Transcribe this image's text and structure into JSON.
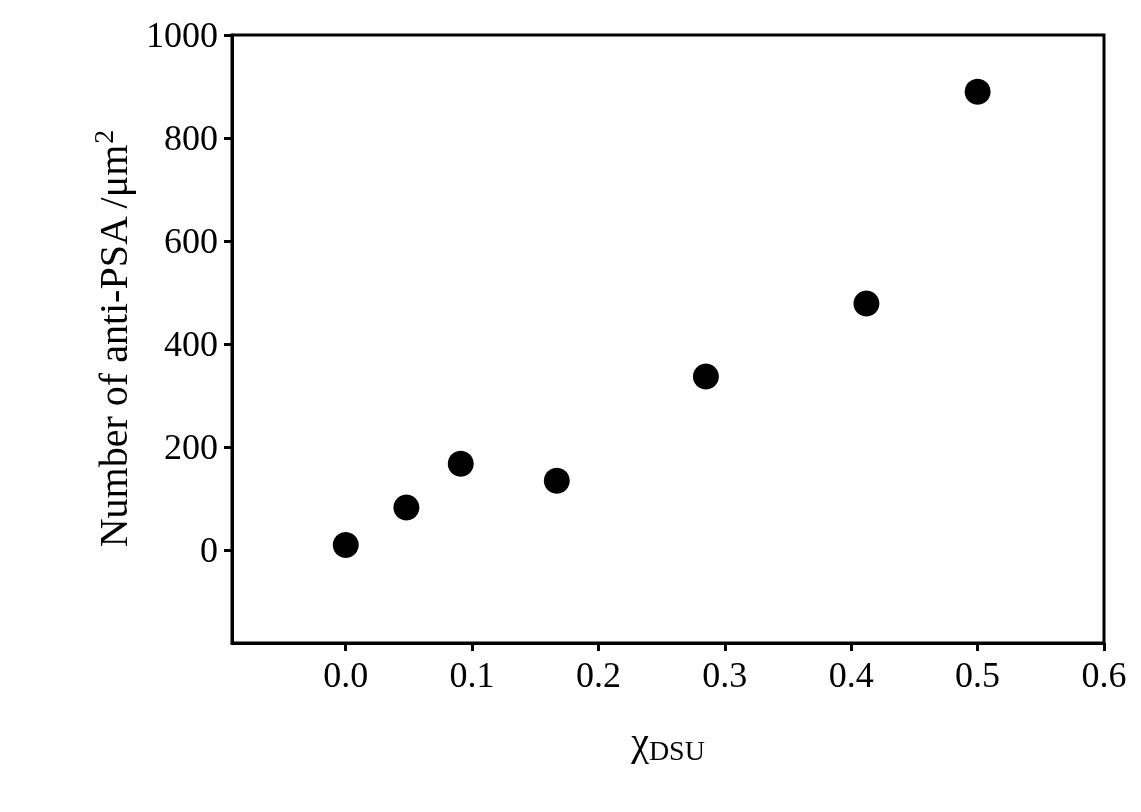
{
  "chart_data": {
    "type": "scatter",
    "xlabel": "χ$_{DSU}$",
    "ylabel": "Number of anti-PSA /μm$^{2}$",
    "x": [
      0.0,
      0.048,
      0.091,
      0.167,
      0.285,
      0.412,
      0.5
    ],
    "series": [
      {
        "color": "#000000",
        "values": [
          10,
          83,
          168,
          135,
          337,
          479,
          890
        ]
      }
    ],
    "xlim": [
      -0.09,
      0.6
    ],
    "xticks": [
      {
        "value": 0,
        "label": "0.0"
      },
      0.1,
      0.2,
      0.3,
      0.4,
      0.5,
      0.6
    ],
    "ylim": [
      -180,
      1000
    ],
    "yticks": [
      0,
      200,
      400,
      600,
      800,
      1000
    ],
    "marker": "circle"
  }
}
